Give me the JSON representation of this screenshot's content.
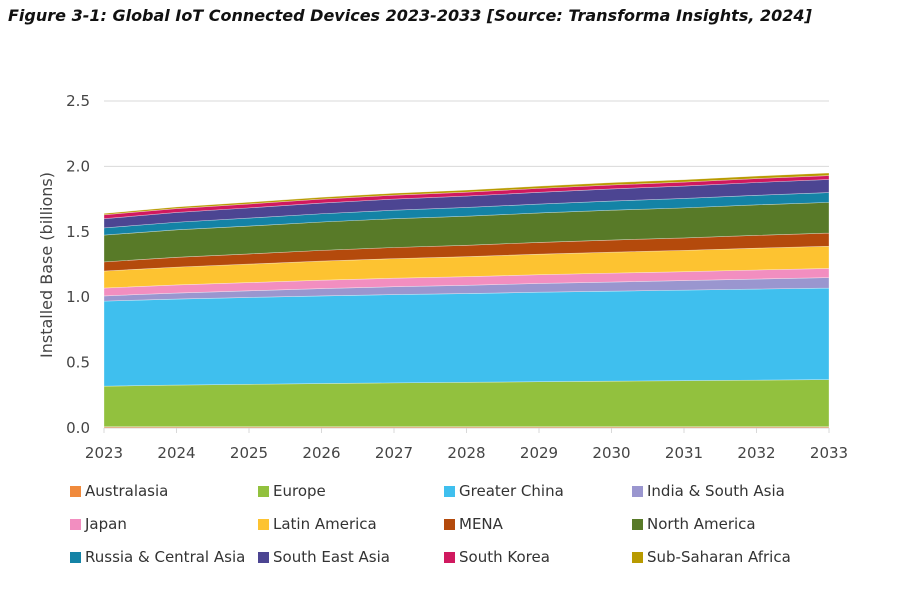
{
  "title": "Figure 3-1: Global IoT Connected Devices 2023-2033 [Source: Transforma Insights, 2024]",
  "chart_data": {
    "type": "area",
    "stacked": true,
    "title": "Figure 3-1: Global IoT Connected Devices 2023-2033 [Source: Transforma Insights, 2024]",
    "xlabel": "",
    "ylabel": "Installed Base (billions)",
    "ylim": [
      0,
      2.5
    ],
    "yticks": [
      "0.0",
      "0.5",
      "1.0",
      "1.5",
      "2.0",
      "2.5"
    ],
    "grid": true,
    "legend_position": "bottom",
    "categories": [
      "2023",
      "2024",
      "2025",
      "2026",
      "2027",
      "2028",
      "2029",
      "2030",
      "2031",
      "2032",
      "2033"
    ],
    "series": [
      {
        "name": "Australasia",
        "color": "#f08a3c",
        "values": [
          0.01,
          0.01,
          0.01,
          0.01,
          0.01,
          0.01,
          0.01,
          0.01,
          0.01,
          0.01,
          0.01
        ]
      },
      {
        "name": "Europe",
        "color": "#92c13e",
        "values": [
          0.31,
          0.318,
          0.324,
          0.33,
          0.335,
          0.339,
          0.344,
          0.348,
          0.352,
          0.356,
          0.36
        ]
      },
      {
        "name": "Greater China",
        "color": "#3fbfee",
        "values": [
          0.65,
          0.658,
          0.664,
          0.67,
          0.675,
          0.679,
          0.684,
          0.688,
          0.692,
          0.696,
          0.7
        ]
      },
      {
        "name": "India & South Asia",
        "color": "#9a96cf",
        "values": [
          0.04,
          0.046,
          0.051,
          0.056,
          0.06,
          0.063,
          0.067,
          0.07,
          0.073,
          0.077,
          0.08
        ]
      },
      {
        "name": "Japan",
        "color": "#f28ec0",
        "values": [
          0.06,
          0.062,
          0.063,
          0.064,
          0.065,
          0.066,
          0.067,
          0.068,
          0.068,
          0.069,
          0.07
        ]
      },
      {
        "name": "Latin America",
        "color": "#fdc331",
        "values": [
          0.13,
          0.136,
          0.141,
          0.146,
          0.15,
          0.153,
          0.157,
          0.16,
          0.163,
          0.167,
          0.17
        ]
      },
      {
        "name": "MENA",
        "color": "#b44a0c",
        "values": [
          0.07,
          0.075,
          0.078,
          0.082,
          0.085,
          0.087,
          0.09,
          0.093,
          0.095,
          0.098,
          0.1
        ]
      },
      {
        "name": "North America",
        "color": "#587a28",
        "values": [
          0.205,
          0.21,
          0.213,
          0.217,
          0.22,
          0.222,
          0.225,
          0.228,
          0.23,
          0.233,
          0.235
        ]
      },
      {
        "name": "Russia & Central Asia",
        "color": "#1483a6",
        "values": [
          0.055,
          0.058,
          0.061,
          0.063,
          0.065,
          0.067,
          0.068,
          0.07,
          0.072,
          0.073,
          0.075
        ]
      },
      {
        "name": "South East Asia",
        "color": "#4c4592",
        "values": [
          0.07,
          0.075,
          0.078,
          0.082,
          0.085,
          0.087,
          0.09,
          0.093,
          0.095,
          0.098,
          0.1
        ]
      },
      {
        "name": "South Korea",
        "color": "#d0195f",
        "values": [
          0.03,
          0.03,
          0.03,
          0.03,
          0.03,
          0.03,
          0.03,
          0.03,
          0.03,
          0.03,
          0.03
        ]
      },
      {
        "name": "Sub-Saharan Africa",
        "color": "#b89a00",
        "values": [
          0.01,
          0.012,
          0.013,
          0.014,
          0.015,
          0.016,
          0.017,
          0.018,
          0.018,
          0.019,
          0.02
        ]
      }
    ]
  }
}
